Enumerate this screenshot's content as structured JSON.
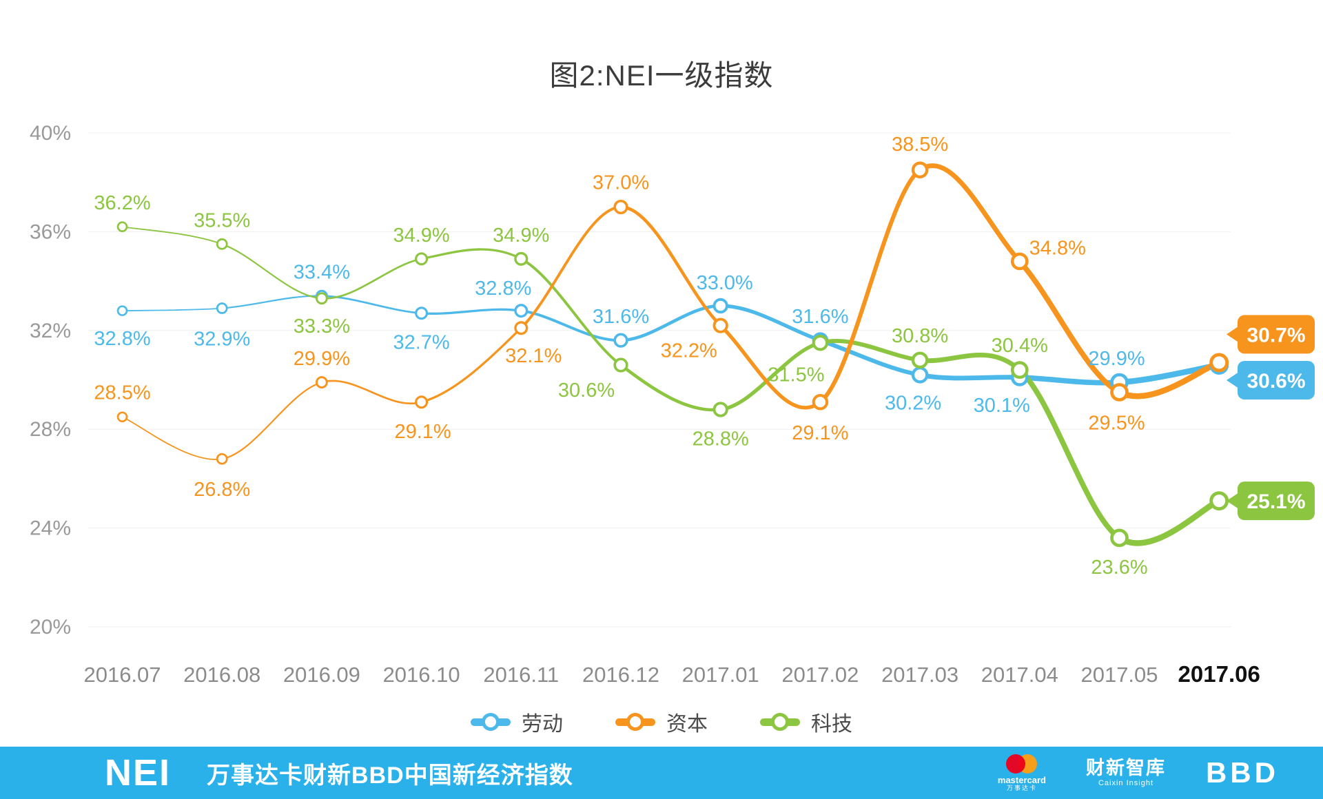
{
  "title": "图2:NEI一级指数",
  "chart_data": {
    "type": "line",
    "categories": [
      "2016.07",
      "2016.08",
      "2016.09",
      "2016.10",
      "2016.11",
      "2016.12",
      "2017.01",
      "2017.02",
      "2017.03",
      "2017.04",
      "2017.05",
      "2017.06"
    ],
    "y_ticks": [
      "40%",
      "36%",
      "32%",
      "28%",
      "24%",
      "20%"
    ],
    "ylim": [
      20,
      40
    ],
    "grid": true,
    "legend_position": "bottom",
    "highlight_last_category": true,
    "series": [
      {
        "name": "劳动",
        "color": "#4db9ea",
        "values": [
          32.8,
          32.9,
          33.4,
          32.7,
          32.8,
          31.6,
          33.0,
          31.6,
          30.2,
          30.1,
          29.9,
          30.6
        ],
        "end_label": "30.6%"
      },
      {
        "name": "资本",
        "color": "#f7941d",
        "values": [
          28.5,
          26.8,
          29.9,
          29.1,
          32.1,
          37.0,
          32.2,
          29.1,
          38.5,
          34.8,
          29.5,
          30.7
        ],
        "end_label": "30.7%"
      },
      {
        "name": "科技",
        "color": "#8cc540",
        "values": [
          36.2,
          35.5,
          33.3,
          34.9,
          34.9,
          30.6,
          28.8,
          31.5,
          30.8,
          30.4,
          23.6,
          25.1
        ],
        "end_label": "25.1%"
      }
    ]
  },
  "footer": {
    "background": "#2bb1e9",
    "logo": "NEI",
    "text": "万事达卡财新BBD中国新经济指数",
    "mastercard": {
      "caption": "mastercard",
      "sub": "万事达卡"
    },
    "caixin": {
      "label": "财新智库",
      "sub": "Caixin Insight"
    },
    "bbd": {
      "label": "BBD"
    }
  }
}
